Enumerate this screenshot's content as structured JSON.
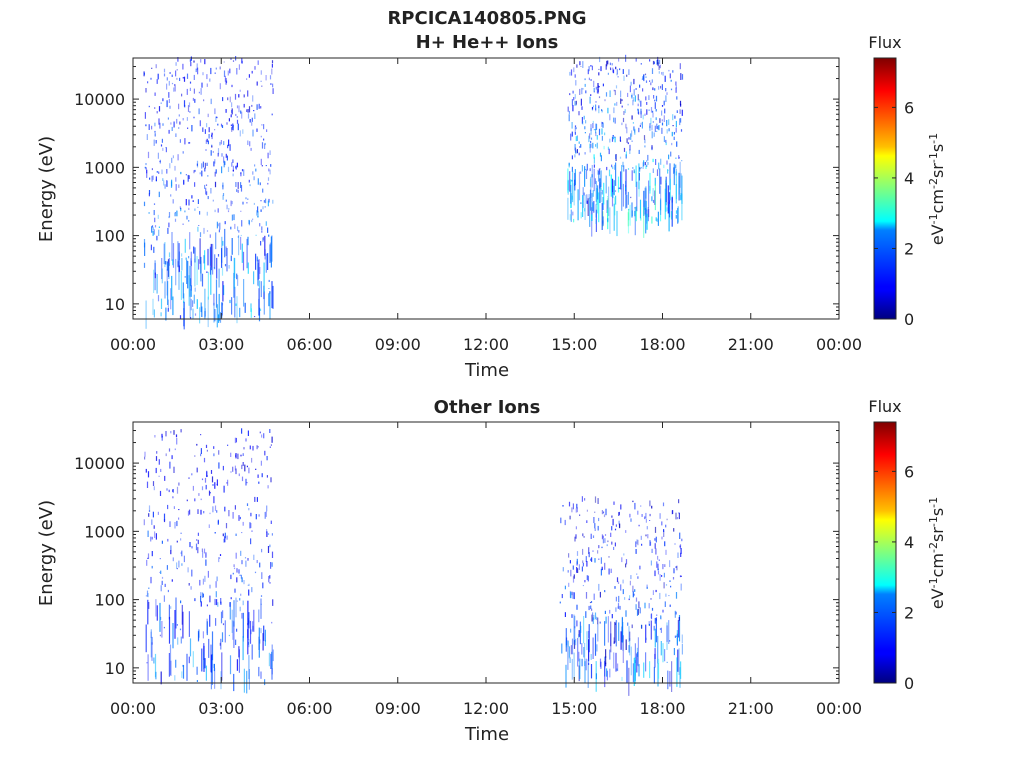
{
  "figure": {
    "title": "RPCICA140805.PNG"
  },
  "colorbar": {
    "title": "Flux",
    "label": "eV-1cm-2sr-1s-1",
    "label_parts": [
      [
        "eV",
        ""
      ],
      [
        "-1",
        "sup"
      ],
      [
        "cm",
        ""
      ],
      [
        "-2",
        "sup"
      ],
      [
        "sr",
        ""
      ],
      [
        "-1",
        "sup"
      ],
      [
        "s",
        ""
      ],
      [
        "-1",
        "sup"
      ]
    ],
    "range": [
      0,
      7.4
    ],
    "ticks": [
      "0",
      "2",
      "4",
      "6"
    ],
    "tick_values": [
      0,
      2,
      4,
      6
    ],
    "colormap": "jet"
  },
  "chart_data": [
    {
      "type": "heatmap",
      "subtitle": "H+ He++ Ions",
      "xlabel": "Time",
      "ylabel": "Energy (eV)",
      "xlim_hours": [
        0,
        24
      ],
      "xticks": [
        "00:00",
        "03:00",
        "06:00",
        "09:00",
        "12:00",
        "15:00",
        "18:00",
        "21:00",
        "00:00"
      ],
      "xtick_hours": [
        0,
        3,
        6,
        9,
        12,
        15,
        18,
        21,
        24
      ],
      "yscale": "log",
      "ylim": [
        6,
        40000
      ],
      "yticks": [
        "10",
        "100",
        "1000",
        "10000"
      ],
      "ytick_values": [
        10,
        100,
        1000,
        10000
      ],
      "intervals": [
        {
          "start": "00:20",
          "end": "04:45",
          "flux": "0.5-3",
          "energy": "6-40000"
        },
        {
          "start": "14:45",
          "end": "18:40",
          "flux": "0.3-4",
          "energy": "150-40000"
        }
      ],
      "flux_max": 4
    },
    {
      "type": "heatmap",
      "subtitle": "Other Ions",
      "xlabel": "Time",
      "ylabel": "Energy (eV)",
      "xlim_hours": [
        0,
        24
      ],
      "xticks": [
        "00:00",
        "03:00",
        "06:00",
        "09:00",
        "12:00",
        "15:00",
        "18:00",
        "21:00",
        "00:00"
      ],
      "xtick_hours": [
        0,
        3,
        6,
        9,
        12,
        15,
        18,
        21,
        24
      ],
      "yscale": "log",
      "ylim": [
        6,
        40000
      ],
      "yticks": [
        "10",
        "100",
        "1000",
        "10000"
      ],
      "ytick_values": [
        10,
        100,
        1000,
        10000
      ],
      "intervals": [
        {
          "start": "00:20",
          "end": "04:45",
          "flux": "0.5-2.5",
          "energy": "6-30000"
        },
        {
          "start": "14:30",
          "end": "18:40",
          "flux": "0.3-3",
          "energy": "6-3000"
        }
      ],
      "flux_max": 3
    }
  ]
}
